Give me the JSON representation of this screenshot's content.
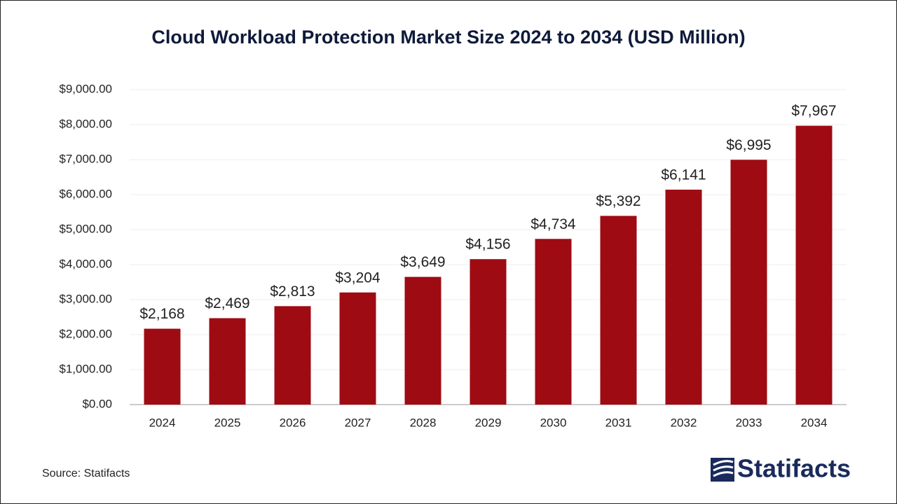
{
  "chart_data": {
    "type": "bar",
    "title": "Cloud Workload Protection Market Size 2024 to 2034 (USD Million)",
    "categories": [
      "2024",
      "2025",
      "2026",
      "2027",
      "2028",
      "2029",
      "2030",
      "2031",
      "2032",
      "2033",
      "2034"
    ],
    "values": [
      2168,
      2469,
      2813,
      3204,
      3649,
      4156,
      4734,
      5392,
      6141,
      6995,
      7967
    ],
    "value_labels": [
      "$2,168",
      "$2,469",
      "$2,813",
      "$3,204",
      "$3,649",
      "$4,156",
      "$4,734",
      "$5,392",
      "$6,141",
      "$6,995",
      "$7,967"
    ],
    "color": "#9e0b13",
    "ylim": [
      0,
      9000
    ],
    "yticks": [
      {
        "value": 0,
        "label": "$0.00"
      },
      {
        "value": 1000,
        "label": "$1,000.00"
      },
      {
        "value": 2000,
        "label": "$2,000.00"
      },
      {
        "value": 3000,
        "label": "$3,000.00"
      },
      {
        "value": 4000,
        "label": "$4,000.00"
      },
      {
        "value": 5000,
        "label": "$5,000.00"
      },
      {
        "value": 6000,
        "label": "$6,000.00"
      },
      {
        "value": 7000,
        "label": "$7,000.00"
      },
      {
        "value": 8000,
        "label": "$8,000.00"
      },
      {
        "value": 9000,
        "label": "$9,000.00"
      }
    ],
    "grid": true,
    "source": "Source: Statifacts",
    "logo": "Statifacts"
  }
}
